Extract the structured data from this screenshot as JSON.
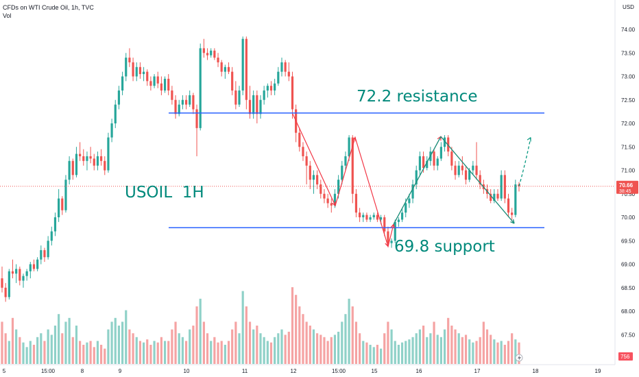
{
  "header": {
    "title": "CFDs on WTI Crude Oil, 1h, TVC",
    "subtitle": "Vol"
  },
  "chart_data": {
    "type": "candlestick",
    "currency": "USD",
    "ylim": [
      66.8,
      74.35
    ],
    "y_ticks": [
      {
        "value": 74.0,
        "label": "74.00"
      },
      {
        "value": 73.5,
        "label": "73.50"
      },
      {
        "value": 73.0,
        "label": "73.00"
      },
      {
        "value": 72.5,
        "label": "72.50"
      },
      {
        "value": 72.0,
        "label": "72.00"
      },
      {
        "value": 71.5,
        "label": "71.50"
      },
      {
        "value": 71.0,
        "label": "71.00"
      },
      {
        "value": 70.5,
        "label": "70.50"
      },
      {
        "value": 70.0,
        "label": "70.00"
      },
      {
        "value": 69.5,
        "label": "69.50"
      },
      {
        "value": 69.0,
        "label": "69.00"
      },
      {
        "value": 68.5,
        "label": "68.50"
      },
      {
        "value": 68.0,
        "label": "68.00"
      },
      {
        "value": 67.5,
        "label": "67.50"
      }
    ],
    "x_ticks": [
      "5",
      "15:00",
      "8",
      "9",
      "10",
      "11",
      "12",
      "15:00",
      "15",
      "16",
      "17",
      "18",
      "19"
    ],
    "last_price": {
      "value": 70.66,
      "label": "70.66",
      "countdown": "38:45"
    },
    "last_volume": {
      "label": "756"
    },
    "colors": {
      "up": "#26a69a",
      "down": "#ef5350",
      "up_vol": "#8fd1c8",
      "down_vol": "#f5a3a3",
      "annotation": "#2962ff",
      "text_annotation": "#00897b",
      "price_line": "#ef5350"
    },
    "annotations": [
      {
        "kind": "hline",
        "price": 72.22,
        "label": "72.2 resistance"
      },
      {
        "kind": "hline",
        "price": 69.78,
        "label": "69.8 support"
      },
      {
        "kind": "text",
        "label": "USOIL  1H"
      }
    ],
    "path_points": [
      {
        "session": "12",
        "price": 72.2
      },
      {
        "session": "12",
        "price": 70.25
      },
      {
        "session": "15:00",
        "price": 71.7
      },
      {
        "session": "15",
        "price": 69.38
      },
      {
        "session": "15",
        "price": 69.85
      },
      {
        "session": "16",
        "price": 71.72
      },
      {
        "session": "17",
        "price": 69.87
      }
    ],
    "projection": {
      "from": 70.66,
      "to": 71.7
    },
    "series": [
      {
        "name": "price",
        "ohlc": [
          [
            68.7,
            68.95,
            68.4,
            68.5
          ],
          [
            68.5,
            68.6,
            68.2,
            68.3
          ],
          [
            68.3,
            68.9,
            68.25,
            68.85
          ],
          [
            68.85,
            69.1,
            68.7,
            68.8
          ],
          [
            68.8,
            69.0,
            68.6,
            68.9
          ],
          [
            68.9,
            68.95,
            68.55,
            68.65
          ],
          [
            68.65,
            68.8,
            68.5,
            68.75
          ],
          [
            68.75,
            68.9,
            68.65,
            68.85
          ],
          [
            68.85,
            69.05,
            68.7,
            69.0
          ],
          [
            69.0,
            69.1,
            68.85,
            68.9
          ],
          [
            68.9,
            69.15,
            68.85,
            69.1
          ],
          [
            69.1,
            69.4,
            69.0,
            69.3
          ],
          [
            69.3,
            69.35,
            69.05,
            69.15
          ],
          [
            69.15,
            69.6,
            69.1,
            69.5
          ],
          [
            69.5,
            69.8,
            69.4,
            69.7
          ],
          [
            69.7,
            70.1,
            69.6,
            70.0
          ],
          [
            70.0,
            70.6,
            69.9,
            70.4
          ],
          [
            70.4,
            70.45,
            70.05,
            70.15
          ],
          [
            70.15,
            70.9,
            70.1,
            70.8
          ],
          [
            70.8,
            71.3,
            70.7,
            71.2
          ],
          [
            71.2,
            71.25,
            70.8,
            70.9
          ],
          [
            70.9,
            71.5,
            70.85,
            71.35
          ],
          [
            71.35,
            71.6,
            71.2,
            71.3
          ],
          [
            71.3,
            71.45,
            71.1,
            71.2
          ],
          [
            71.2,
            71.4,
            71.0,
            71.3
          ],
          [
            71.3,
            71.5,
            71.15,
            71.25
          ],
          [
            71.25,
            71.35,
            71.0,
            71.1
          ],
          [
            71.1,
            71.4,
            71.0,
            71.3
          ],
          [
            71.3,
            71.45,
            71.1,
            71.2
          ],
          [
            71.2,
            71.3,
            70.9,
            71.0
          ],
          [
            71.0,
            71.8,
            70.95,
            71.7
          ],
          [
            71.7,
            72.1,
            71.6,
            72.0
          ],
          [
            72.0,
            72.5,
            71.9,
            72.4
          ],
          [
            72.4,
            72.8,
            72.3,
            72.7
          ],
          [
            72.7,
            73.1,
            72.6,
            73.0
          ],
          [
            73.0,
            73.5,
            72.9,
            73.4
          ],
          [
            73.4,
            73.6,
            73.2,
            73.3
          ],
          [
            73.3,
            73.4,
            72.9,
            73.0
          ],
          [
            73.0,
            73.3,
            72.9,
            73.2
          ],
          [
            73.2,
            73.3,
            72.95,
            73.05
          ],
          [
            73.05,
            73.2,
            72.9,
            73.1
          ],
          [
            73.1,
            73.15,
            72.8,
            72.9
          ],
          [
            72.9,
            73.0,
            72.7,
            72.8
          ],
          [
            72.8,
            73.05,
            72.75,
            73.0
          ],
          [
            73.0,
            73.1,
            72.75,
            72.85
          ],
          [
            72.85,
            73.0,
            72.6,
            72.7
          ],
          [
            72.7,
            73.0,
            72.65,
            72.95
          ],
          [
            72.95,
            73.05,
            72.6,
            72.7
          ],
          [
            72.7,
            72.8,
            72.4,
            72.5
          ],
          [
            72.5,
            72.6,
            72.1,
            72.2
          ],
          [
            72.2,
            72.5,
            72.15,
            72.4
          ],
          [
            72.4,
            72.6,
            72.3,
            72.5
          ],
          [
            72.5,
            72.6,
            72.3,
            72.4
          ],
          [
            72.4,
            72.7,
            72.35,
            72.6
          ],
          [
            72.6,
            72.65,
            72.2,
            72.3
          ],
          [
            72.3,
            72.4,
            71.3,
            71.9
          ],
          [
            71.9,
            73.7,
            71.85,
            73.6
          ],
          [
            73.6,
            73.8,
            73.4,
            73.5
          ],
          [
            73.5,
            73.6,
            73.35,
            73.45
          ],
          [
            73.45,
            73.6,
            73.4,
            73.55
          ],
          [
            73.55,
            73.6,
            73.35,
            73.4
          ],
          [
            73.4,
            73.5,
            73.2,
            73.3
          ],
          [
            73.3,
            73.35,
            73.0,
            73.1
          ],
          [
            73.1,
            73.25,
            72.95,
            73.2
          ],
          [
            73.2,
            73.3,
            73.05,
            73.1
          ],
          [
            73.1,
            73.2,
            72.6,
            72.7
          ],
          [
            72.7,
            72.9,
            72.3,
            72.4
          ],
          [
            72.4,
            72.8,
            72.35,
            72.7
          ],
          [
            72.7,
            73.85,
            72.6,
            73.8
          ],
          [
            73.8,
            73.85,
            72.3,
            72.5
          ],
          [
            72.5,
            72.8,
            72.1,
            72.2
          ],
          [
            72.2,
            72.7,
            72.1,
            72.6
          ],
          [
            72.6,
            72.7,
            72.0,
            72.2
          ],
          [
            72.2,
            72.6,
            72.1,
            72.5
          ],
          [
            72.5,
            72.8,
            72.4,
            72.7
          ],
          [
            72.7,
            72.85,
            72.55,
            72.8
          ],
          [
            72.8,
            72.9,
            72.6,
            72.7
          ],
          [
            72.7,
            72.95,
            72.6,
            72.85
          ],
          [
            72.85,
            73.2,
            72.8,
            73.1
          ],
          [
            73.1,
            73.4,
            73.0,
            73.3
          ],
          [
            73.3,
            73.35,
            73.0,
            73.1
          ],
          [
            73.1,
            73.3,
            72.9,
            73.0
          ],
          [
            73.0,
            73.1,
            72.1,
            72.3
          ],
          [
            72.3,
            72.4,
            71.6,
            71.8
          ],
          [
            71.8,
            71.9,
            71.4,
            71.5
          ],
          [
            71.5,
            71.6,
            71.2,
            71.3
          ],
          [
            71.3,
            71.4,
            70.7,
            71.1
          ],
          [
            71.1,
            71.2,
            70.6,
            70.8
          ],
          [
            70.8,
            71.0,
            70.5,
            70.9
          ],
          [
            70.9,
            71.0,
            70.6,
            70.7
          ],
          [
            70.7,
            70.8,
            70.4,
            70.5
          ],
          [
            70.5,
            70.6,
            70.3,
            70.4
          ],
          [
            70.4,
            70.5,
            70.2,
            70.3
          ],
          [
            70.3,
            70.4,
            70.1,
            70.25
          ],
          [
            70.25,
            70.6,
            70.2,
            70.5
          ],
          [
            70.5,
            70.9,
            70.4,
            70.8
          ],
          [
            70.8,
            71.2,
            70.7,
            71.1
          ],
          [
            71.1,
            71.4,
            71.0,
            71.3
          ],
          [
            71.3,
            71.75,
            71.2,
            71.7
          ],
          [
            71.7,
            71.75,
            70.3,
            70.5
          ],
          [
            70.5,
            70.6,
            70.0,
            70.1
          ],
          [
            70.1,
            70.2,
            69.9,
            70.0
          ],
          [
            70.0,
            70.1,
            69.9,
            70.05
          ],
          [
            70.05,
            70.1,
            69.9,
            69.95
          ],
          [
            69.95,
            70.05,
            69.9,
            70.0
          ],
          [
            70.0,
            70.1,
            69.95,
            70.05
          ],
          [
            70.05,
            70.1,
            69.9,
            69.95
          ],
          [
            69.95,
            70.05,
            69.85,
            70.0
          ],
          [
            70.0,
            70.05,
            69.6,
            69.7
          ],
          [
            69.7,
            69.8,
            69.4,
            69.45
          ],
          [
            69.45,
            69.55,
            69.35,
            69.5
          ],
          [
            69.5,
            69.95,
            69.45,
            69.9
          ],
          [
            69.9,
            70.0,
            69.8,
            69.95
          ],
          [
            69.95,
            70.2,
            69.9,
            70.1
          ],
          [
            70.1,
            70.4,
            70.0,
            70.3
          ],
          [
            70.3,
            70.5,
            70.2,
            70.4
          ],
          [
            70.4,
            70.8,
            70.3,
            70.7
          ],
          [
            70.7,
            71.1,
            70.6,
            71.0
          ],
          [
            71.0,
            71.4,
            70.9,
            71.3
          ],
          [
            71.3,
            71.4,
            70.95,
            71.05
          ],
          [
            71.05,
            71.3,
            71.0,
            71.2
          ],
          [
            71.2,
            71.5,
            71.1,
            71.4
          ],
          [
            71.4,
            71.45,
            71.0,
            71.1
          ],
          [
            71.1,
            71.3,
            71.0,
            71.25
          ],
          [
            71.25,
            71.6,
            71.2,
            71.5
          ],
          [
            71.5,
            71.75,
            71.4,
            71.7
          ],
          [
            71.7,
            71.75,
            71.3,
            71.4
          ],
          [
            71.4,
            71.5,
            71.0,
            71.1
          ],
          [
            71.1,
            71.2,
            70.8,
            70.9
          ],
          [
            70.9,
            71.2,
            70.85,
            71.1
          ],
          [
            71.1,
            71.3,
            70.9,
            71.0
          ],
          [
            71.0,
            71.1,
            70.7,
            70.8
          ],
          [
            70.8,
            71.05,
            70.75,
            71.0
          ],
          [
            71.0,
            71.2,
            70.9,
            71.1
          ],
          [
            71.1,
            71.6,
            70.8,
            70.9
          ],
          [
            70.9,
            71.0,
            70.6,
            70.7
          ],
          [
            70.7,
            70.8,
            70.5,
            70.6
          ],
          [
            70.6,
            70.7,
            70.4,
            70.5
          ],
          [
            70.5,
            70.6,
            70.3,
            70.35
          ],
          [
            70.35,
            70.6,
            70.3,
            70.5
          ],
          [
            70.5,
            70.6,
            70.35,
            70.4
          ],
          [
            70.4,
            71.0,
            70.35,
            70.9
          ],
          [
            70.9,
            71.0,
            70.3,
            70.4
          ],
          [
            70.4,
            70.5,
            70.0,
            70.1
          ],
          [
            70.1,
            70.2,
            69.95,
            70.05
          ],
          [
            70.05,
            70.8,
            70.0,
            70.7
          ],
          [
            70.7,
            70.75,
            70.55,
            70.66
          ]
        ]
      },
      {
        "name": "Vol",
        "volumes": [
          55,
          40,
          30,
          60,
          45,
          35,
          28,
          22,
          30,
          25,
          35,
          40,
          30,
          45,
          38,
          50,
          65,
          40,
          55,
          60,
          35,
          50,
          30,
          25,
          28,
          30,
          22,
          30,
          25,
          20,
          45,
          55,
          60,
          50,
          55,
          70,
          45,
          40,
          35,
          30,
          28,
          32,
          25,
          30,
          28,
          35,
          30,
          30,
          45,
          55,
          40,
          35,
          30,
          45,
          50,
          75,
          85,
          55,
          40,
          30,
          35,
          28,
          30,
          25,
          30,
          45,
          55,
          40,
          95,
          75,
          55,
          45,
          50,
          40,
          35,
          30,
          28,
          35,
          40,
          45,
          38,
          42,
          100,
          90,
          75,
          65,
          55,
          50,
          45,
          40,
          38,
          35,
          30,
          35,
          38,
          42,
          55,
          65,
          85,
          75,
          55,
          40,
          30,
          28,
          25,
          22,
          25,
          20,
          40,
          55,
          45,
          30,
          25,
          28,
          30,
          32,
          35,
          40,
          45,
          50,
          35,
          40,
          55,
          38,
          35,
          45,
          60,
          50,
          45,
          40,
          35,
          38,
          32,
          28,
          30,
          35,
          55,
          45,
          38,
          32,
          28,
          30,
          25,
          30,
          40,
          32,
          28,
          45,
          38
        ]
      }
    ]
  }
}
